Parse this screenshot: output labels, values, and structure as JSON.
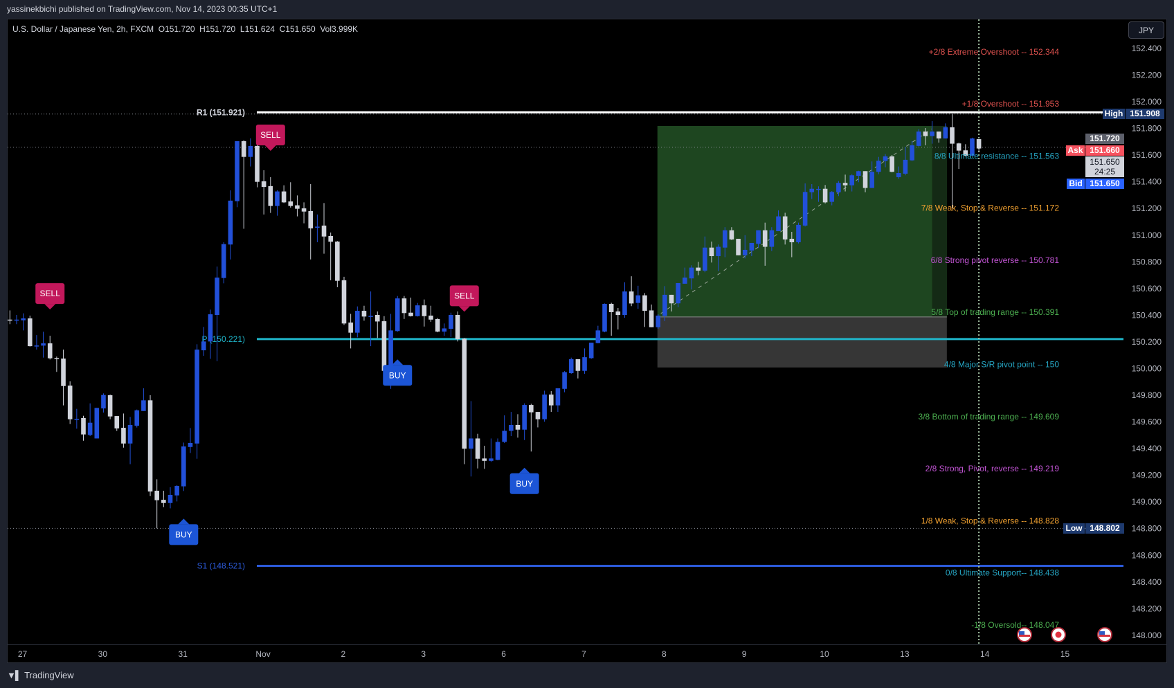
{
  "header": {
    "publisher_text": "yassinekbichi published on TradingView.com, Nov 14, 2023 00:35 UTC+1"
  },
  "legend": {
    "symbol": "U.S. Dollar / Japanese Yen, 2h, FXCM",
    "open": "O151.720",
    "high": "H151.720",
    "low": "L151.624",
    "close": "C151.650",
    "volume": "Vol3.999K"
  },
  "currency_button": "JPY",
  "footer": {
    "brand": "TradingView",
    "logo_mark": "17"
  },
  "colors": {
    "up": "#2250d9",
    "down": "#d1d4dc",
    "sell": "#c2185b",
    "buy": "#1c55d6",
    "pivot": "#1fb5c9",
    "r1": "#ffffff",
    "s1": "#2c5bdc"
  },
  "price_axis": {
    "ticks": [
      "152.400",
      "152.200",
      "152.000",
      "151.800",
      "151.600",
      "151.400",
      "151.200",
      "151.000",
      "150.800",
      "150.600",
      "150.400",
      "150.200",
      "150.000",
      "149.800",
      "149.600",
      "149.400",
      "149.200",
      "149.000",
      "148.800",
      "148.600",
      "148.400",
      "148.200",
      "148.000"
    ],
    "tags": {
      "high": {
        "label": "High",
        "value": "151.908"
      },
      "last": {
        "value": "151.720"
      },
      "ask": {
        "label": "Ask",
        "value": "151.660"
      },
      "countdown": {
        "value": "151.650",
        "time": "24:25"
      },
      "bid": {
        "label": "Bid",
        "value": "151.650"
      },
      "low": {
        "label": "Low",
        "value": "148.802"
      }
    }
  },
  "time_axis": {
    "labels": [
      "27",
      "30",
      "31",
      "Nov",
      "2",
      "3",
      "6",
      "7",
      "8",
      "9",
      "10",
      "13",
      "14",
      "15"
    ]
  },
  "chart_data": {
    "type": "candlestick",
    "symbol": "USDJPY",
    "interval": "2h",
    "ylim": [
      148.0,
      152.4
    ],
    "grid": false,
    "candles_ohlc": [
      [
        150.367,
        150.436,
        150.333,
        150.365
      ],
      [
        150.365,
        150.402,
        150.333,
        150.367
      ],
      [
        150.362,
        150.414,
        150.286,
        150.376
      ],
      [
        150.376,
        150.397,
        150.165,
        150.168
      ],
      [
        150.17,
        150.251,
        150.142,
        150.173
      ],
      [
        150.172,
        150.276,
        150.082,
        150.189
      ],
      [
        150.189,
        150.246,
        150.068,
        150.077
      ],
      [
        150.078,
        150.09,
        149.975,
        150.076
      ],
      [
        150.075,
        150.142,
        149.724,
        149.869
      ],
      [
        149.872,
        149.904,
        149.584,
        149.62
      ],
      [
        149.621,
        149.698,
        149.549,
        149.623
      ],
      [
        149.629,
        149.646,
        149.459,
        149.506
      ],
      [
        149.502,
        149.739,
        149.494,
        149.594
      ],
      [
        149.476,
        149.705,
        149.476,
        149.705
      ],
      [
        149.701,
        149.814,
        149.67,
        149.802
      ],
      [
        149.8,
        149.805,
        149.62,
        149.641
      ],
      [
        149.644,
        149.644,
        149.532,
        149.551
      ],
      [
        149.556,
        149.663,
        149.407,
        149.438
      ],
      [
        149.438,
        149.637,
        149.283,
        149.577
      ],
      [
        149.571,
        149.693,
        149.558,
        149.687
      ],
      [
        149.682,
        149.852,
        149.682,
        149.762
      ],
      [
        149.762,
        149.8,
        149.044,
        149.078
      ],
      [
        149.084,
        149.17,
        148.802,
        149.013
      ],
      [
        149.016,
        149.084,
        148.961,
        148.992
      ],
      [
        148.992,
        149.11,
        148.952,
        149.053
      ],
      [
        149.049,
        149.125,
        149.004,
        149.12
      ],
      [
        149.117,
        149.445,
        149.082,
        149.416
      ],
      [
        149.412,
        149.554,
        149.367,
        149.442
      ],
      [
        149.438,
        150.182,
        149.324,
        150.142
      ],
      [
        150.137,
        150.312,
        150.096,
        150.203
      ],
      [
        150.203,
        150.442,
        150.073,
        150.407
      ],
      [
        150.402,
        150.765,
        150.056,
        150.682
      ],
      [
        150.679,
        150.947,
        150.639,
        150.933
      ],
      [
        150.93,
        151.336,
        150.818,
        151.259
      ],
      [
        151.255,
        151.705,
        151.21,
        151.705
      ],
      [
        151.705,
        151.712,
        151.048,
        151.587
      ],
      [
        151.587,
        151.726,
        151.515,
        151.669
      ],
      [
        151.669,
        151.682,
        151.359,
        151.4
      ],
      [
        151.404,
        151.487,
        151.155,
        151.362
      ],
      [
        151.368,
        151.435,
        151.167,
        151.219
      ],
      [
        151.219,
        151.337,
        151.146,
        151.328
      ],
      [
        151.328,
        151.374,
        151.241,
        151.246
      ],
      [
        151.253,
        151.397,
        151.207,
        151.219
      ],
      [
        151.224,
        151.298,
        151.141,
        151.198
      ],
      [
        151.201,
        151.246,
        151.089,
        151.177
      ],
      [
        151.181,
        151.383,
        150.818,
        151.051
      ],
      [
        151.06,
        151.155,
        150.947,
        151.064
      ],
      [
        151.072,
        151.241,
        150.861,
        150.99
      ],
      [
        150.994,
        151.02,
        150.662,
        150.951
      ],
      [
        150.952,
        150.956,
        150.61,
        150.658
      ],
      [
        150.662,
        150.688,
        150.327,
        150.338
      ],
      [
        150.345,
        150.41,
        150.151,
        150.269
      ],
      [
        150.269,
        150.466,
        150.234,
        150.433
      ],
      [
        150.433,
        150.471,
        150.359,
        150.39
      ],
      [
        150.392,
        150.578,
        150.168,
        150.395
      ],
      [
        150.402,
        150.428,
        150.229,
        150.353
      ],
      [
        150.355,
        150.393,
        149.978,
        149.983
      ],
      [
        150.0,
        150.41,
        149.848,
        150.286
      ],
      [
        150.281,
        150.544,
        150.276,
        150.526
      ],
      [
        150.526,
        150.544,
        150.372,
        150.416
      ],
      [
        150.419,
        150.532,
        150.39,
        150.393
      ],
      [
        150.393,
        150.492,
        150.39,
        150.474
      ],
      [
        150.474,
        150.518,
        150.315,
        150.393
      ],
      [
        150.397,
        150.471,
        150.35,
        150.367
      ],
      [
        150.371,
        150.379,
        150.272,
        150.277
      ],
      [
        150.277,
        150.338,
        150.246,
        150.301
      ],
      [
        150.298,
        150.419,
        150.237,
        150.402
      ],
      [
        150.402,
        150.428,
        150.203,
        150.22
      ],
      [
        150.224,
        150.229,
        149.283,
        149.399
      ],
      [
        149.399,
        149.756,
        149.191,
        149.476
      ],
      [
        149.476,
        149.511,
        149.251,
        149.324
      ],
      [
        149.326,
        149.421,
        149.248,
        149.308
      ],
      [
        149.308,
        149.476,
        149.3,
        149.326
      ],
      [
        149.315,
        149.476,
        149.312,
        149.45
      ],
      [
        149.45,
        149.649,
        149.442,
        149.533
      ],
      [
        149.533,
        149.675,
        149.494,
        149.577
      ],
      [
        149.577,
        149.658,
        149.482,
        149.542
      ],
      [
        149.542,
        149.739,
        149.464,
        149.727
      ],
      [
        149.727,
        149.736,
        149.378,
        149.672
      ],
      [
        149.675,
        149.675,
        149.559,
        149.62
      ],
      [
        149.62,
        149.834,
        149.601,
        149.805
      ],
      [
        149.805,
        149.831,
        149.675,
        149.724
      ],
      [
        149.724,
        149.852,
        149.675,
        149.852
      ],
      [
        149.848,
        149.981,
        149.822,
        149.973
      ],
      [
        149.966,
        150.082,
        149.961,
        150.07
      ],
      [
        150.07,
        150.07,
        149.926,
        149.983
      ],
      [
        149.983,
        150.151,
        149.961,
        150.085
      ],
      [
        150.078,
        150.194,
        150.073,
        150.194
      ],
      [
        150.191,
        150.321,
        150.189,
        150.286
      ],
      [
        150.277,
        150.488,
        150.272,
        150.485
      ],
      [
        150.485,
        150.493,
        150.246,
        150.423
      ],
      [
        150.428,
        150.454,
        150.293,
        150.402
      ],
      [
        150.402,
        150.647,
        150.381,
        150.578
      ],
      [
        150.578,
        150.692,
        150.468,
        150.488
      ],
      [
        150.492,
        150.621,
        150.448,
        150.549
      ],
      [
        150.549,
        150.566,
        150.312,
        150.433
      ],
      [
        150.436,
        150.48,
        150.31,
        150.31
      ],
      [
        150.31,
        150.407,
        150.298,
        150.397
      ],
      [
        150.394,
        150.618,
        150.356,
        150.553
      ],
      [
        150.553,
        150.553,
        150.428,
        150.489
      ],
      [
        150.489,
        150.641,
        150.459,
        150.641
      ],
      [
        150.636,
        150.757,
        150.636,
        150.682
      ],
      [
        150.676,
        150.774,
        150.593,
        150.757
      ],
      [
        150.757,
        150.8,
        150.7,
        150.734
      ],
      [
        150.734,
        150.99,
        150.722,
        150.907
      ],
      [
        150.907,
        150.952,
        150.795,
        150.843
      ],
      [
        150.843,
        150.93,
        150.731,
        150.913
      ],
      [
        150.907,
        151.06,
        150.835,
        151.037
      ],
      [
        151.037,
        151.06,
        150.964,
        150.968
      ],
      [
        150.973,
        150.973,
        150.849,
        150.849
      ],
      [
        150.849,
        151.0,
        150.826,
        150.89
      ],
      [
        150.885,
        150.942,
        150.843,
        150.942
      ],
      [
        150.935,
        151.037,
        150.904,
        151.037
      ],
      [
        151.037,
        151.094,
        150.771,
        150.913
      ],
      [
        150.913,
        151.06,
        150.881,
        151.037
      ],
      [
        151.03,
        151.186,
        151.03,
        151.141
      ],
      [
        151.141,
        151.168,
        150.93,
        150.968
      ],
      [
        150.973,
        151.025,
        150.835,
        150.947
      ],
      [
        150.947,
        151.094,
        150.938,
        151.077
      ],
      [
        151.072,
        151.388,
        151.065,
        151.324
      ],
      [
        151.322,
        151.383,
        151.271,
        151.348
      ],
      [
        151.345,
        151.366,
        151.25,
        151.347
      ],
      [
        151.348,
        151.376,
        151.238,
        151.246
      ],
      [
        151.25,
        151.331,
        151.224,
        151.324
      ],
      [
        151.322,
        151.406,
        151.293,
        151.392
      ],
      [
        151.392,
        151.454,
        151.328,
        151.374
      ],
      [
        151.374,
        151.457,
        151.328,
        151.449
      ],
      [
        151.445,
        151.483,
        151.397,
        151.48
      ],
      [
        151.48,
        151.48,
        151.322,
        151.354
      ],
      [
        151.354,
        151.553,
        151.354,
        151.475
      ],
      [
        151.475,
        151.587,
        151.457,
        151.558
      ],
      [
        151.556,
        151.608,
        151.509,
        151.591
      ],
      [
        151.591,
        151.601,
        151.471,
        151.475
      ],
      [
        151.435,
        151.515,
        151.423,
        151.466
      ],
      [
        151.461,
        151.662,
        151.449,
        151.565
      ],
      [
        151.561,
        151.705,
        151.556,
        151.674
      ],
      [
        151.669,
        151.795,
        151.665,
        151.777
      ],
      [
        151.777,
        151.803,
        151.674,
        151.743
      ],
      [
        151.743,
        151.855,
        151.686,
        151.777
      ],
      [
        151.777,
        151.777,
        151.694,
        151.725
      ],
      [
        151.725,
        151.838,
        151.725,
        151.809
      ],
      [
        151.809,
        151.908,
        151.203,
        151.686
      ],
      [
        151.688,
        151.694,
        151.497,
        151.634
      ],
      [
        151.636,
        151.682,
        151.591,
        151.596
      ],
      [
        151.596,
        151.731,
        151.596,
        151.725
      ],
      [
        151.72,
        151.72,
        151.624,
        151.65
      ]
    ],
    "pivots": [
      {
        "label": "R1 (151.921)",
        "price": 151.921,
        "color": "#ffffff"
      },
      {
        "label": "P (150.221)",
        "price": 150.221,
        "color": "#1fb5c9"
      },
      {
        "label": "S1 (148.521)",
        "price": 148.521,
        "color": "#2c5bdc"
      }
    ],
    "murrey_levels": [
      {
        "text": "+2/8 Extreme Overshoot --  152.344",
        "price": 152.344,
        "color": "#e0524f"
      },
      {
        "text": "+1/8 Overshoot --  151.953",
        "price": 151.953,
        "color": "#e0524f"
      },
      {
        "text": "8/8 Ultimate resistance --  151.563",
        "price": 151.563,
        "color": "#26a6c4"
      },
      {
        "text": "7/8 Weak, Stop & Reverse --  151.172",
        "price": 151.172,
        "color": "#f0a030"
      },
      {
        "text": "6/8 Strong pivot reverse --  150.781",
        "price": 150.781,
        "color": "#c455d6"
      },
      {
        "text": "5/8 Top of trading range --  150.391",
        "price": 150.391,
        "color": "#4caf50"
      },
      {
        "text": "4/8 Major S/R pivot point --  150",
        "price": 150.0,
        "color": "#26a6c4"
      },
      {
        "text": "3/8 Bottom of trading range --  149.609",
        "price": 149.609,
        "color": "#4caf50"
      },
      {
        "text": "2/8 Strong, Pivot, reverse --  149.219",
        "price": 149.219,
        "color": "#c455d6"
      },
      {
        "text": "1/8 Weak, Stop & Reverse --  148.828",
        "price": 148.828,
        "color": "#f0a030"
      },
      {
        "text": "0/8 Ultimate Support--  148.438",
        "price": 148.438,
        "color": "#26a6c4"
      },
      {
        "text": "-1/8 Oversold--  148.047",
        "price": 148.047,
        "color": "#4caf50"
      }
    ],
    "signals": [
      {
        "type": "SELL",
        "bar": 6
      },
      {
        "type": "BUY",
        "bar": 26
      },
      {
        "type": "SELL",
        "bar": 39
      },
      {
        "type": "BUY",
        "bar": 58
      },
      {
        "type": "SELL",
        "bar": 68
      },
      {
        "type": "BUY",
        "bar": 77
      }
    ],
    "long_position": {
      "entry": 150.387,
      "target": 151.819,
      "stop": 150.008,
      "start_bar": 97,
      "end_bar": 140
    },
    "reference_lines": {
      "high": 151.908,
      "ask": 151.66,
      "low": 148.802
    },
    "events": [
      {
        "icon": "us-flag-icon"
      },
      {
        "icon": "japan-flag-icon"
      },
      {
        "icon": "us-flag-icon"
      }
    ]
  }
}
